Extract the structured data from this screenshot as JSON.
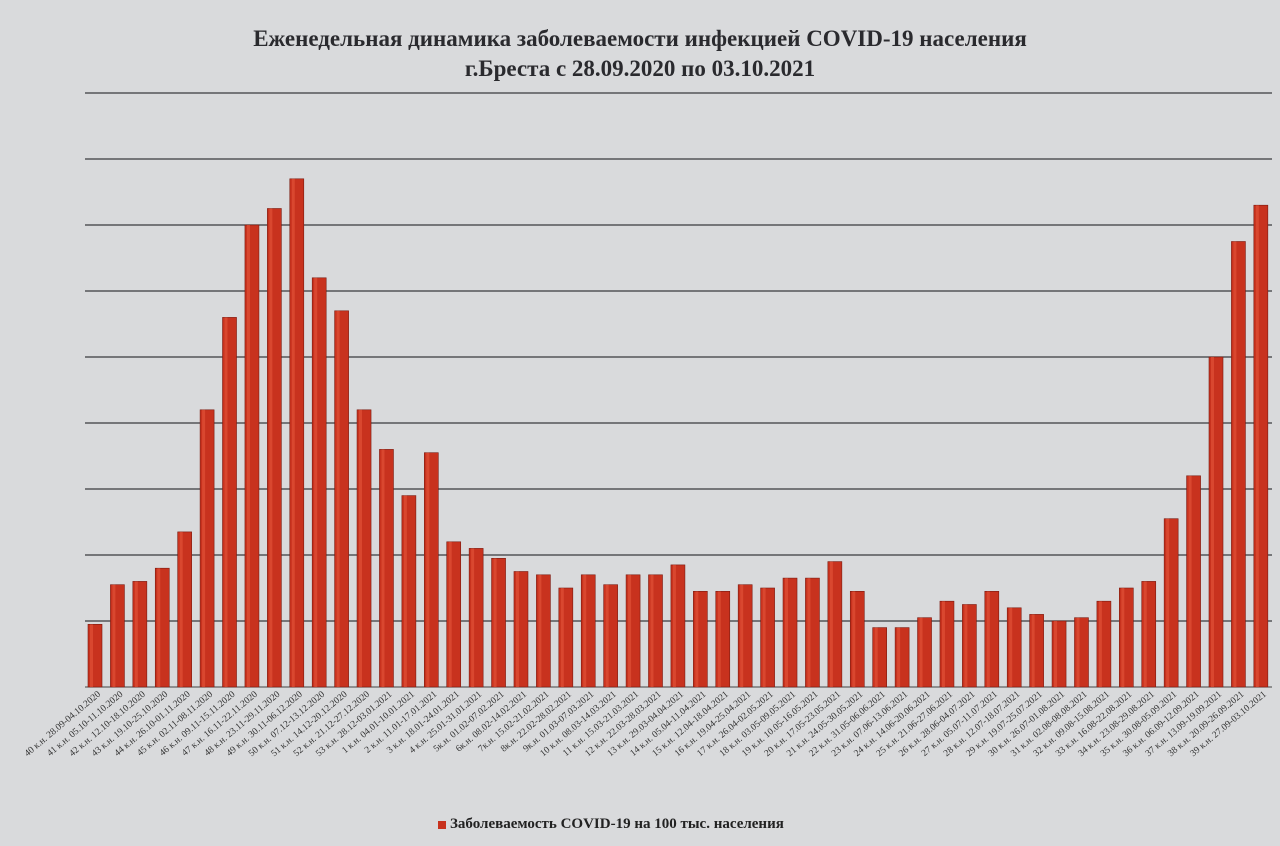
{
  "chart_data": {
    "type": "bar",
    "title": "Еженедельная динамика заболеваемости  инфекцией COVID-19 населения",
    "subtitle": "г.Бреста с  28.09.2020 по 03.10.2021",
    "xlabel": "",
    "ylabel": "",
    "y_tick_labels_shown": false,
    "y_unit_note": "values estimated in gridline intervals (no y-axis labels printed)",
    "ylim": [
      0,
      9
    ],
    "grid": true,
    "legend_position": "bottom",
    "bar_color": "#c8321e",
    "series": [
      {
        "name": "Заболеваемость COVID-19 на 100 тыс. населения",
        "values": [
          0.95,
          1.55,
          1.6,
          1.8,
          2.35,
          4.2,
          5.6,
          7.0,
          7.25,
          7.7,
          6.2,
          5.7,
          4.2,
          3.6,
          2.9,
          3.55,
          2.2,
          2.1,
          1.95,
          1.75,
          1.7,
          1.5,
          1.7,
          1.55,
          1.7,
          1.7,
          1.85,
          1.45,
          1.45,
          1.55,
          1.5,
          1.65,
          1.65,
          1.9,
          1.45,
          0.9,
          0.9,
          1.05,
          1.3,
          1.25,
          1.45,
          1.2,
          1.1,
          1.0,
          1.05,
          1.3,
          1.5,
          1.6,
          2.55,
          3.2,
          5.0,
          6.75,
          7.3
        ]
      }
    ],
    "categories": [
      "40 к.н. 28.09-04.10.2020",
      "41 к.н. 05.10-11.10.2020",
      "42 к.н. 12.10-18.10.2020",
      "43 к.н. 19.10-25.10.2020",
      "44 к.н. 26.10-01.11.2020",
      "45 к.н. 02.11-08.11.2020",
      "46 к.н. 09.11-15.11.2020",
      "47 к.н. 16.11-22.11.2020",
      "48 к.н. 23.11-29.11.2020",
      "49 к.н. 30.11-06.12.2020",
      "50 к.н. 07.12-13.12.2020",
      "51 к.н. 14.12-20.12.2020",
      "52 к.н. 21.12-27.12.2020",
      "53 к.н. 28.12-03.01.2021",
      "1 к.н. 04.01-10.01.2021",
      "2 к.н. 11.01-17.01.2021",
      "3 к.н. 18.01-24.01.2021",
      "4 к.н. 25.01-31.01.2021",
      "5к.н. 01.02-07.02.2021",
      "6к.н. 08.02-14.02.2021",
      "7к.н. 15.02-21.02.2021",
      "8к.н. 22.02-28.02.2021",
      "9к.н. 01.03-07.03.2021",
      "10 к.н. 08.03-14.03.2021",
      "11 к.н. 15.03-21.03.2021",
      "12 к.н. 22.03-28.03.2021",
      "13 к.н. 29.03-04.04.2021",
      "14 к.н. 05.04-11.04.2021",
      "15 к.н. 12.04-18.04.2021",
      "16 к.н. 19.04-25.04.2021",
      "17 к.н. 26.04-02.05.2021",
      "18 к.н. 03.05-09.05.2021",
      "19 к.н. 10.05-16.05.2021",
      "20 к.н. 17.05-23.05.2021",
      "21 к.н. 24.05-30.05.2021",
      "22 к.н. 31.05-06.06.2021",
      "23 к.н. 07.06-13.06.2021",
      "24 к.н. 14.06-20.06.2021",
      "25 к.н. 21.06-27.06.2021",
      "26 к.н. 28.06-04.07.2021",
      "27 к.н. 05.07-11.07.2021",
      "28 к.н. 12.07-18.07.2021",
      "29 к.н. 19.07-25.07.2021",
      "30 к.н. 26.07-01.08.2021",
      "31 к.н. 02.08-08.08.2021",
      "32 к.н. 09.08-15.08.2021",
      "33 к.н. 16.08-22.08.2021",
      "34 к.н. 23.08-29.08.2021",
      "35 к.н. 30.08-05.09.2021",
      "36 к.н. 06.09-12.09.2021",
      "37 к.н. 13.09-19.09.2021",
      "38 к.н. 20.09-26.09.2021",
      "39 к.н. 27.09-03.10.2021"
    ]
  }
}
